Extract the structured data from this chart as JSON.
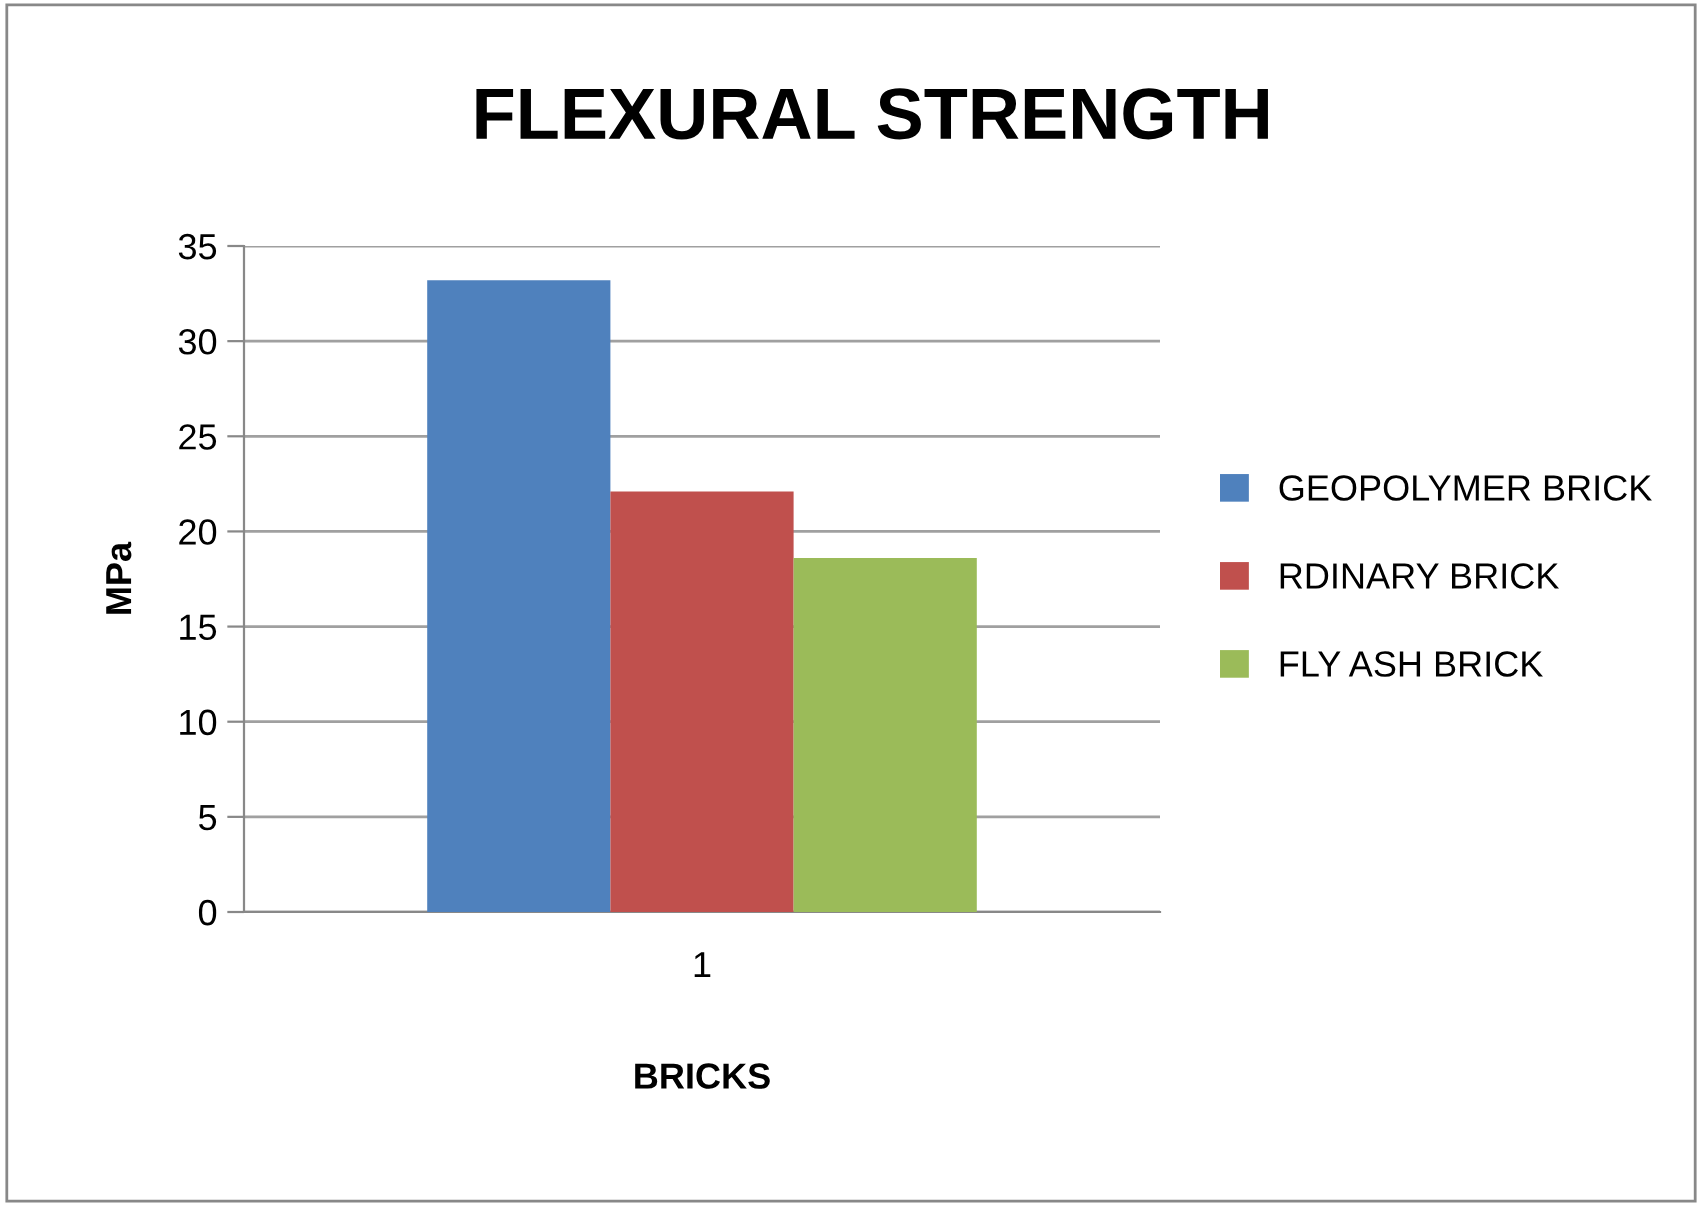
{
  "chart_data": {
    "type": "bar",
    "title": "FLEXURAL STRENGTH",
    "xlabel": "BRICKS",
    "ylabel": "MPa",
    "categories": [
      "1"
    ],
    "series": [
      {
        "name": "GEOPOLYMER BRICK",
        "color": "#4f81bd",
        "values": [
          33.2
        ]
      },
      {
        "name": "RDINARY BRICK",
        "color": "#c0504d",
        "values": [
          22.1
        ]
      },
      {
        "name": "FLY ASH BRICK",
        "color": "#9bbb59",
        "values": [
          18.6
        ]
      }
    ],
    "ylim": [
      0,
      35
    ],
    "yticks": [
      0,
      5,
      10,
      15,
      20,
      25,
      30,
      35
    ],
    "grid": "y",
    "legend": "right"
  }
}
